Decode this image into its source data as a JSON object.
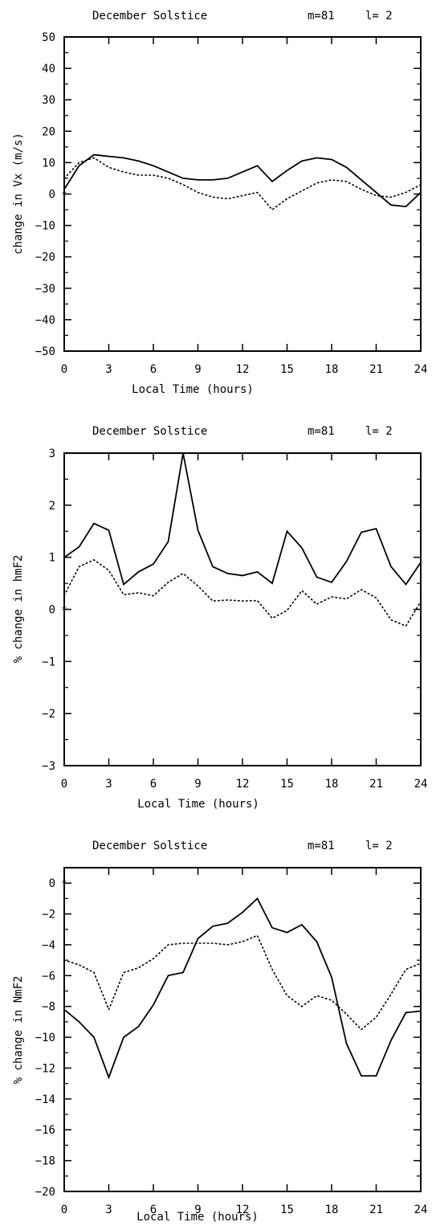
{
  "colors": {
    "line": "#000000",
    "background": "#ffffff"
  },
  "chart_data": [
    {
      "type": "line",
      "title": "December Solstice",
      "params": {
        "m": "m=81",
        "l": "l= 2"
      },
      "xlabel": "Local Time (hours)",
      "ylabel": "change in Vx (m/s)",
      "xlim": [
        0,
        24
      ],
      "ylim": [
        -50,
        50
      ],
      "xticks": [
        0,
        3,
        6,
        9,
        12,
        15,
        18,
        21,
        24
      ],
      "yticks": [
        50,
        40,
        30,
        20,
        10,
        0,
        -10,
        -20,
        -30,
        -40,
        -50
      ],
      "yminor": 5,
      "x": [
        0,
        1,
        2,
        3,
        4,
        5,
        6,
        7,
        8,
        9,
        10,
        11,
        12,
        13,
        14,
        15,
        16,
        17,
        18,
        19,
        20,
        21,
        22,
        23,
        24
      ],
      "series": [
        {
          "style": "solid",
          "values": [
            1.5,
            9,
            12.5,
            12,
            11.5,
            10.5,
            9,
            7,
            5,
            4.5,
            4.5,
            5,
            7,
            9,
            4,
            7.5,
            10.5,
            11.5,
            11,
            8.5,
            4.5,
            0.5,
            -3.5,
            -4,
            0.5
          ]
        },
        {
          "style": "dotted",
          "values": [
            5,
            10,
            11.5,
            8.5,
            7,
            6,
            6,
            5,
            3,
            0.5,
            -1,
            -1.5,
            -0.5,
            0.5,
            -5,
            -1.5,
            1,
            3.5,
            4.5,
            4,
            1.5,
            -0.5,
            -1,
            0.5,
            3
          ]
        }
      ]
    },
    {
      "type": "line",
      "title": "December Solstice",
      "params": {
        "m": "m=81",
        "l": "l= 2"
      },
      "xlabel": "Local Time (hours)",
      "ylabel": "% change in hmF2",
      "xlim": [
        0,
        24
      ],
      "ylim": [
        -3,
        3
      ],
      "xticks": [
        0,
        3,
        6,
        9,
        12,
        15,
        18,
        21,
        24
      ],
      "yticks": [
        3,
        2,
        1,
        0,
        -1,
        -2,
        -3
      ],
      "yminor": 0.5,
      "x": [
        0,
        1,
        2,
        3,
        4,
        5,
        6,
        7,
        8,
        9,
        10,
        11,
        12,
        13,
        14,
        15,
        16,
        17,
        18,
        19,
        20,
        21,
        22,
        23,
        24
      ],
      "series": [
        {
          "style": "solid",
          "values": [
            1.0,
            1.2,
            1.65,
            1.52,
            0.48,
            0.72,
            0.87,
            1.3,
            3.0,
            1.52,
            0.82,
            0.69,
            0.65,
            0.72,
            0.5,
            1.5,
            1.18,
            0.62,
            0.52,
            0.92,
            1.48,
            1.55,
            0.82,
            0.48,
            0.9
          ]
        },
        {
          "style": "dotted",
          "values": [
            0.27,
            0.82,
            0.95,
            0.75,
            0.28,
            0.32,
            0.26,
            0.52,
            0.69,
            0.45,
            0.16,
            0.18,
            0.16,
            0.17,
            -0.17,
            -0.02,
            0.36,
            0.1,
            0.24,
            0.2,
            0.38,
            0.22,
            -0.2,
            -0.32,
            0.15
          ]
        }
      ]
    },
    {
      "type": "line",
      "title": "December Solstice",
      "params": {
        "m": "m=81",
        "l": "l= 2"
      },
      "xlabel": "Local Time (hours)",
      "ylabel": "% change in NmF2",
      "xlim": [
        0,
        24
      ],
      "ylim": [
        -20,
        1
      ],
      "xticks": [
        0,
        3,
        6,
        9,
        12,
        15,
        18,
        21,
        24
      ],
      "yticks": [
        0,
        -2,
        -4,
        -6,
        -8,
        -10,
        -12,
        -14,
        -16,
        -18,
        -20
      ],
      "yminor": 1,
      "x": [
        0,
        1,
        2,
        3,
        4,
        5,
        6,
        7,
        8,
        9,
        10,
        11,
        12,
        13,
        14,
        15,
        16,
        17,
        18,
        19,
        20,
        21,
        22,
        23,
        24
      ],
      "series": [
        {
          "style": "solid",
          "values": [
            -8.2,
            -9.0,
            -10.0,
            -12.6,
            -10.0,
            -9.3,
            -7.9,
            -6.0,
            -5.8,
            -3.6,
            -2.8,
            -2.6,
            -1.9,
            -1.0,
            -2.9,
            -3.2,
            -2.7,
            -3.8,
            -6.1,
            -10.4,
            -12.5,
            -12.5,
            -10.2,
            -8.4,
            -8.3
          ]
        },
        {
          "style": "dotted",
          "values": [
            -5.0,
            -5.3,
            -5.8,
            -8.2,
            -5.8,
            -5.5,
            -4.9,
            -4.0,
            -3.9,
            -3.9,
            -3.9,
            -4.0,
            -3.8,
            -3.4,
            -5.6,
            -7.3,
            -8.0,
            -7.3,
            -7.6,
            -8.5,
            -9.5,
            -8.7,
            -7.2,
            -5.6,
            -5.2
          ]
        }
      ]
    }
  ]
}
